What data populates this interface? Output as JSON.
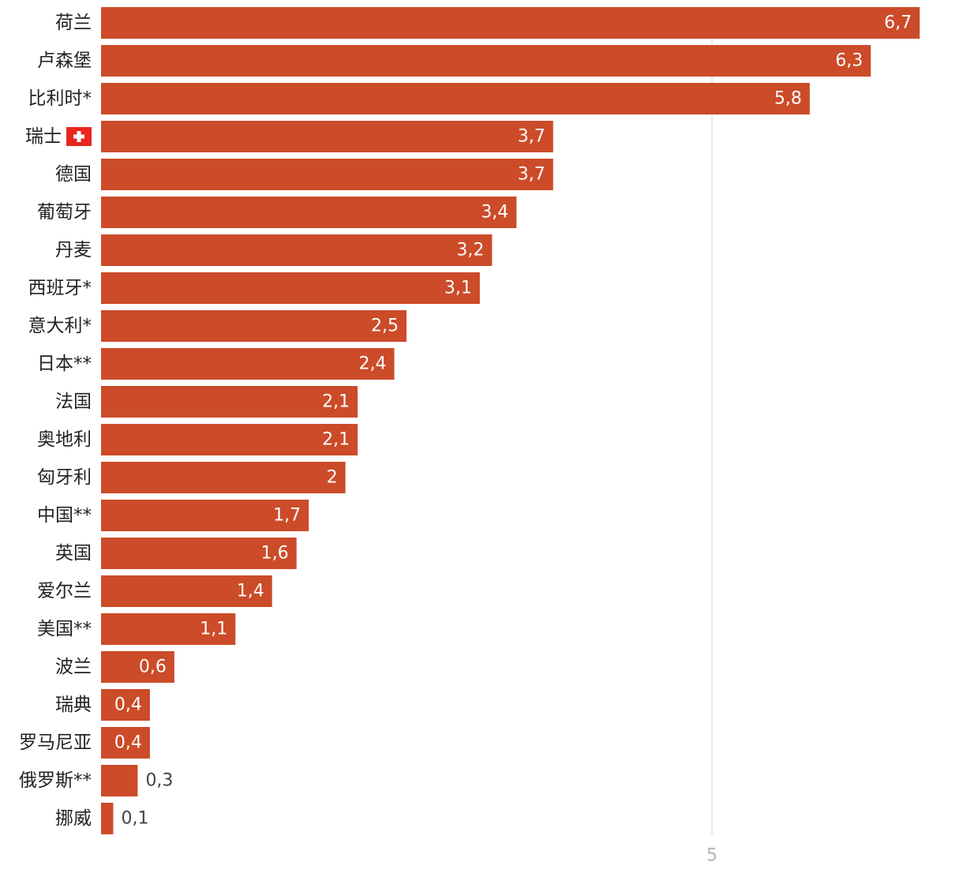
{
  "chart_data": {
    "type": "bar",
    "orientation": "horizontal",
    "categories": [
      "荷兰",
      "卢森堡",
      "比利时*",
      "瑞士",
      "德国",
      "葡萄牙",
      "丹麦",
      "西班牙*",
      "意大利*",
      "日本**",
      "法国",
      "奥地利",
      "匈牙利",
      "中国**",
      "英国",
      "爱尔兰",
      "美国**",
      "波兰",
      "瑞典",
      "罗马尼亚",
      "俄罗斯**",
      "挪威"
    ],
    "values": [
      6.7,
      6.3,
      5.8,
      3.7,
      3.7,
      3.4,
      3.2,
      3.1,
      2.5,
      2.4,
      2.1,
      2.1,
      2.0,
      1.7,
      1.6,
      1.4,
      1.1,
      0.6,
      0.4,
      0.4,
      0.3,
      0.1
    ],
    "value_labels": [
      "6,7",
      "6,3",
      "5,8",
      "3,7",
      "3,7",
      "3,4",
      "3,2",
      "3,1",
      "2,5",
      "2,4",
      "2,1",
      "2,1",
      "2",
      "1,7",
      "1,6",
      "1,4",
      "1,1",
      "0,6",
      "0,4",
      "0,4",
      "0,3",
      "0,1"
    ],
    "flags": {
      "瑞士": "swiss-flag-icon"
    },
    "xlim": [
      0,
      6.7
    ],
    "x_ticks": [
      5
    ],
    "x_tick_labels": [
      "5"
    ],
    "grid": true,
    "title": "",
    "xlabel": "",
    "ylabel": ""
  },
  "colors": {
    "bar": "#cc4b29",
    "label_inside": "#ffffff",
    "label_outside": "#444444",
    "gridline": "#e2e2e2",
    "flag_red": "#e8251f"
  }
}
